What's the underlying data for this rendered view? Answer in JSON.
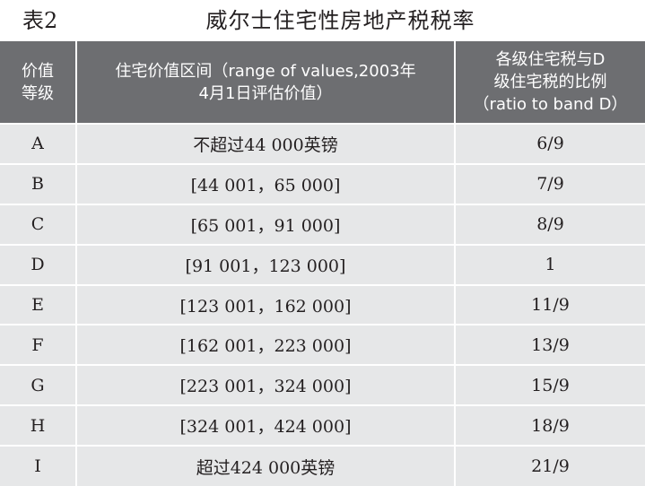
{
  "table_label": "表2",
  "title": "威尔士住宅性房地产税税率",
  "headers": [
    {
      "line1": "价值",
      "line2": "等级"
    },
    {
      "line1": "住宅价值区间（range of values,2003年",
      "line2": "4月1日评估价值）"
    },
    {
      "line1": "各级住宅税与D",
      "line2": "级住宅税的比例",
      "line3": "（ratio to band D）"
    }
  ],
  "rows": [
    {
      "band": "A",
      "range": "不超过44 000英镑",
      "ratio": "6/9"
    },
    {
      "band": "B",
      "range": "[44 001，65 000]",
      "ratio": "7/9"
    },
    {
      "band": "C",
      "range": "[65 001，91 000]",
      "ratio": "8/9"
    },
    {
      "band": "D",
      "range": "[91 001，123 000]",
      "ratio": "1"
    },
    {
      "band": "E",
      "range": "[123 001，162 000]",
      "ratio": "11/9"
    },
    {
      "band": "F",
      "range": "[162 001，223 000]",
      "ratio": "13/9"
    },
    {
      "band": "G",
      "range": "[223 001，324 000]",
      "ratio": "15/9"
    },
    {
      "band": "H",
      "range": "[324 001，424 000]",
      "ratio": "18/9"
    },
    {
      "band": "I",
      "range": "超过424 000英镑",
      "ratio": "21/9"
    }
  ]
}
